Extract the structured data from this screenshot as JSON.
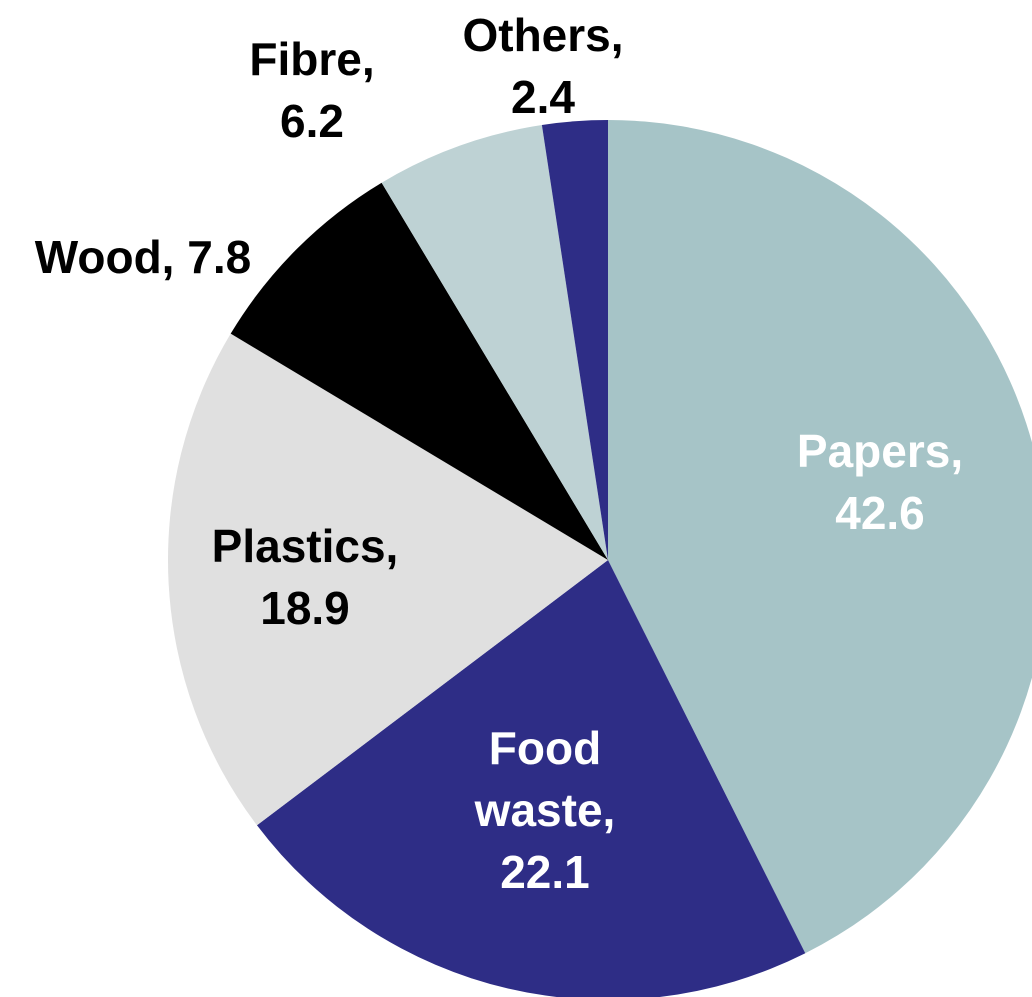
{
  "chart_data": {
    "type": "pie",
    "title": "",
    "start_angle": "12 o'clock",
    "direction": "clockwise",
    "slices": [
      {
        "name": "Papers",
        "value": 42.6,
        "label": [
          "Papers,",
          "42.6"
        ],
        "color": "#a6c4c7",
        "label_color": "#ffffff"
      },
      {
        "name": "Food waste",
        "value": 22.1,
        "label": [
          "Food",
          "waste,",
          "22.1"
        ],
        "color": "#2e2d86",
        "label_color": "#ffffff"
      },
      {
        "name": "Plastics",
        "value": 18.9,
        "label": [
          "Plastics,",
          "18.9"
        ],
        "color": "#e0e0e0",
        "label_color": "#000000"
      },
      {
        "name": "Wood",
        "value": 7.8,
        "label": [
          "Wood, 7.8"
        ],
        "color": "#000000",
        "label_color": "#000000"
      },
      {
        "name": "Fibre",
        "value": 6.2,
        "label": [
          "Fibre,",
          "6.2"
        ],
        "color": "#bed2d4",
        "label_color": "#000000"
      },
      {
        "name": "Others",
        "value": 2.4,
        "label": [
          "Others,",
          "2.4"
        ],
        "color": "#2e2d86",
        "label_color": "#000000"
      }
    ]
  }
}
